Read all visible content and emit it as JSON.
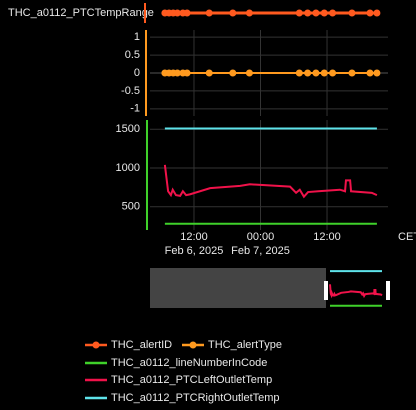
{
  "chart_data": {
    "type": "line",
    "x_unit": "CET",
    "xlim": [
      "2025-02-06T04:04",
      "2025-02-07T23:00"
    ],
    "xticks": [
      {
        "value": "2025-02-06T12:00",
        "label": "12:00",
        "date_label": "Feb 6, 2025"
      },
      {
        "value": "2025-02-07T00:00",
        "label": "00:00",
        "date_label": "Feb 7, 2025"
      },
      {
        "value": "2025-02-07T12:00",
        "label": "12:00"
      }
    ],
    "y3categories": [
      "THC_a0112_PTCTempRange"
    ],
    "y2lim": [
      -1.2,
      1.2
    ],
    "y2ticks": [
      1,
      0.5,
      0,
      -0.5,
      -1
    ],
    "ylim": [
      200,
      1620
    ],
    "yticks": [
      500,
      1000,
      1500
    ],
    "grid": true,
    "series": [
      {
        "name": "THC_alertID",
        "color": "#ff5a1f",
        "axis": "y3",
        "markers": true,
        "x": [
          "2025-02-06T06:45",
          "2025-02-06T07:30",
          "2025-02-06T08:15",
          "2025-02-06T09:00",
          "2025-02-06T10:00",
          "2025-02-06T10:45",
          "2025-02-06T14:45",
          "2025-02-06T19:00",
          "2025-02-06T22:00",
          "2025-02-07T07:00",
          "2025-02-07T08:30",
          "2025-02-07T10:00",
          "2025-02-07T11:30",
          "2025-02-07T13:00",
          "2025-02-07T16:30",
          "2025-02-07T19:45",
          "2025-02-07T21:00"
        ],
        "values": [
          "THC_a0112_PTCTempRange",
          "THC_a0112_PTCTempRange",
          "THC_a0112_PTCTempRange",
          "THC_a0112_PTCTempRange",
          "THC_a0112_PTCTempRange",
          "THC_a0112_PTCTempRange",
          "THC_a0112_PTCTempRange",
          "THC_a0112_PTCTempRange",
          "THC_a0112_PTCTempRange",
          "THC_a0112_PTCTempRange",
          "THC_a0112_PTCTempRange",
          "THC_a0112_PTCTempRange",
          "THC_a0112_PTCTempRange",
          "THC_a0112_PTCTempRange",
          "THC_a0112_PTCTempRange",
          "THC_a0112_PTCTempRange",
          "THC_a0112_PTCTempRange"
        ]
      },
      {
        "name": "THC_alertType",
        "color": "#ff9a1f",
        "axis": "y2",
        "markers": true,
        "x": [
          "2025-02-06T06:45",
          "2025-02-06T07:30",
          "2025-02-06T08:15",
          "2025-02-06T09:00",
          "2025-02-06T10:00",
          "2025-02-06T10:45",
          "2025-02-06T14:45",
          "2025-02-06T19:00",
          "2025-02-06T22:00",
          "2025-02-07T07:00",
          "2025-02-07T08:30",
          "2025-02-07T10:00",
          "2025-02-07T11:30",
          "2025-02-07T13:00",
          "2025-02-07T16:30",
          "2025-02-07T19:45",
          "2025-02-07T21:00"
        ],
        "values": [
          0,
          0,
          0,
          0,
          0,
          0,
          0,
          0,
          0,
          0,
          0,
          0,
          0,
          0,
          0,
          0,
          0
        ]
      },
      {
        "name": "THC_a0112_lineNumberInCode",
        "color": "#3fd12a",
        "axis": "y",
        "x": [
          "2025-02-06T06:45",
          "2025-02-07T21:00"
        ],
        "values": [
          280,
          280
        ]
      },
      {
        "name": "THC_a0112_PTCLeftOutletTemp",
        "color": "#f0124a",
        "axis": "y",
        "x": [
          "2025-02-06T06:45",
          "2025-02-06T07:20",
          "2025-02-06T07:50",
          "2025-02-06T08:10",
          "2025-02-06T08:45",
          "2025-02-06T09:30",
          "2025-02-06T10:00",
          "2025-02-06T10:35",
          "2025-02-06T11:15",
          "2025-02-06T14:55",
          "2025-02-06T20:20",
          "2025-02-06T22:05",
          "2025-02-07T05:20",
          "2025-02-07T06:25",
          "2025-02-07T07:05",
          "2025-02-07T07:50",
          "2025-02-07T08:35",
          "2025-02-07T10:25",
          "2025-02-07T14:20",
          "2025-02-07T15:15",
          "2025-02-07T15:25",
          "2025-02-07T16:10",
          "2025-02-07T16:20",
          "2025-02-07T20:05",
          "2025-02-07T21:00"
        ],
        "values": [
          1040,
          700,
          650,
          720,
          650,
          640,
          700,
          650,
          660,
          740,
          770,
          790,
          760,
          680,
          720,
          630,
          690,
          700,
          720,
          700,
          840,
          840,
          700,
          680,
          650
        ]
      },
      {
        "name": "THC_a0112_PTCRightOutletTemp",
        "color": "#5ee3ea",
        "axis": "y",
        "x": [
          "2025-02-06T06:45",
          "2025-02-07T21:00"
        ],
        "values": [
          1510,
          1510
        ]
      }
    ]
  }
}
